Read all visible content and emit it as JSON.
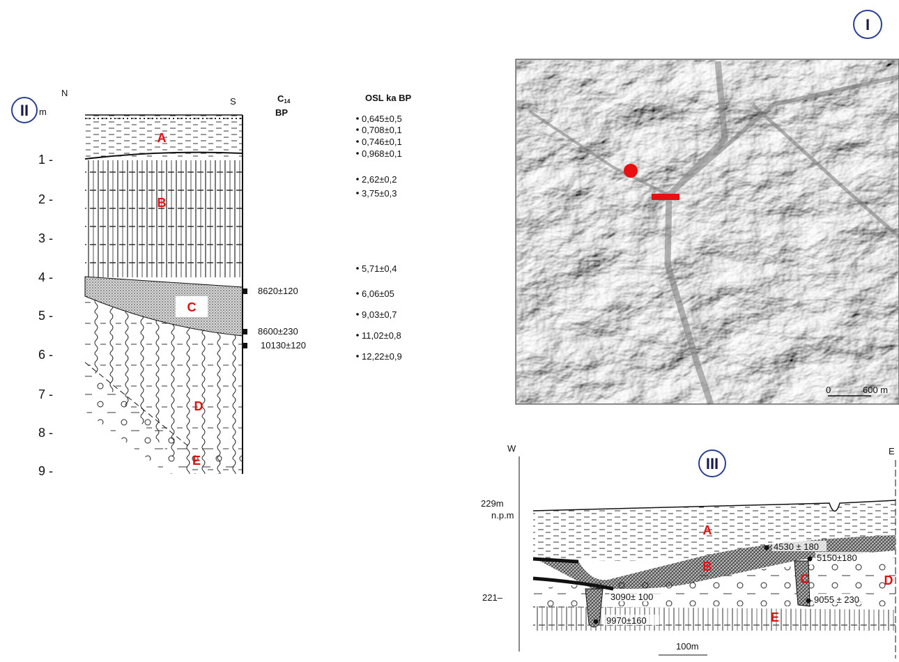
{
  "panel_1": {
    "label": "I",
    "scale": {
      "start": "0",
      "end": "600 m"
    }
  },
  "panel_2": {
    "label": "II",
    "unit": "m",
    "north": "N",
    "south": "S",
    "c14_header": {
      "symbol": "C",
      "subscript": "14",
      "unit": "BP"
    },
    "osl_header": "OSL  ka BP",
    "depths": [
      "1 -",
      "2 -",
      "3 -",
      "4 -",
      "5 -",
      "6 -",
      "7 -",
      "8 -",
      "9 -"
    ],
    "layers": [
      "A",
      "B",
      "C",
      "D",
      "E"
    ],
    "c14_dates": [
      "8620±120",
      "8600±230",
      "10130±120"
    ],
    "osl_dates": [
      "0,645±0,5",
      "0,708±0,1",
      "0,746±0,1",
      "0,968±0,1",
      "2,62±0,2",
      "3,75±0,3",
      "5,71±0,4",
      "6,06±05",
      "9,03±0,7",
      "11,02±0,8",
      "12,22±0,9"
    ]
  },
  "panel_3": {
    "label": "III",
    "west": "W",
    "east": "E",
    "top_elevation": "229m",
    "datum": "n.p.m",
    "lower_elevation": "221–",
    "layers": [
      "A",
      "B",
      "C",
      "D",
      "E"
    ],
    "dates": [
      "4530 ± 180",
      "5150±180",
      "3090± 100",
      "9055 ± 230",
      "9970±160"
    ],
    "scale": "100m"
  }
}
